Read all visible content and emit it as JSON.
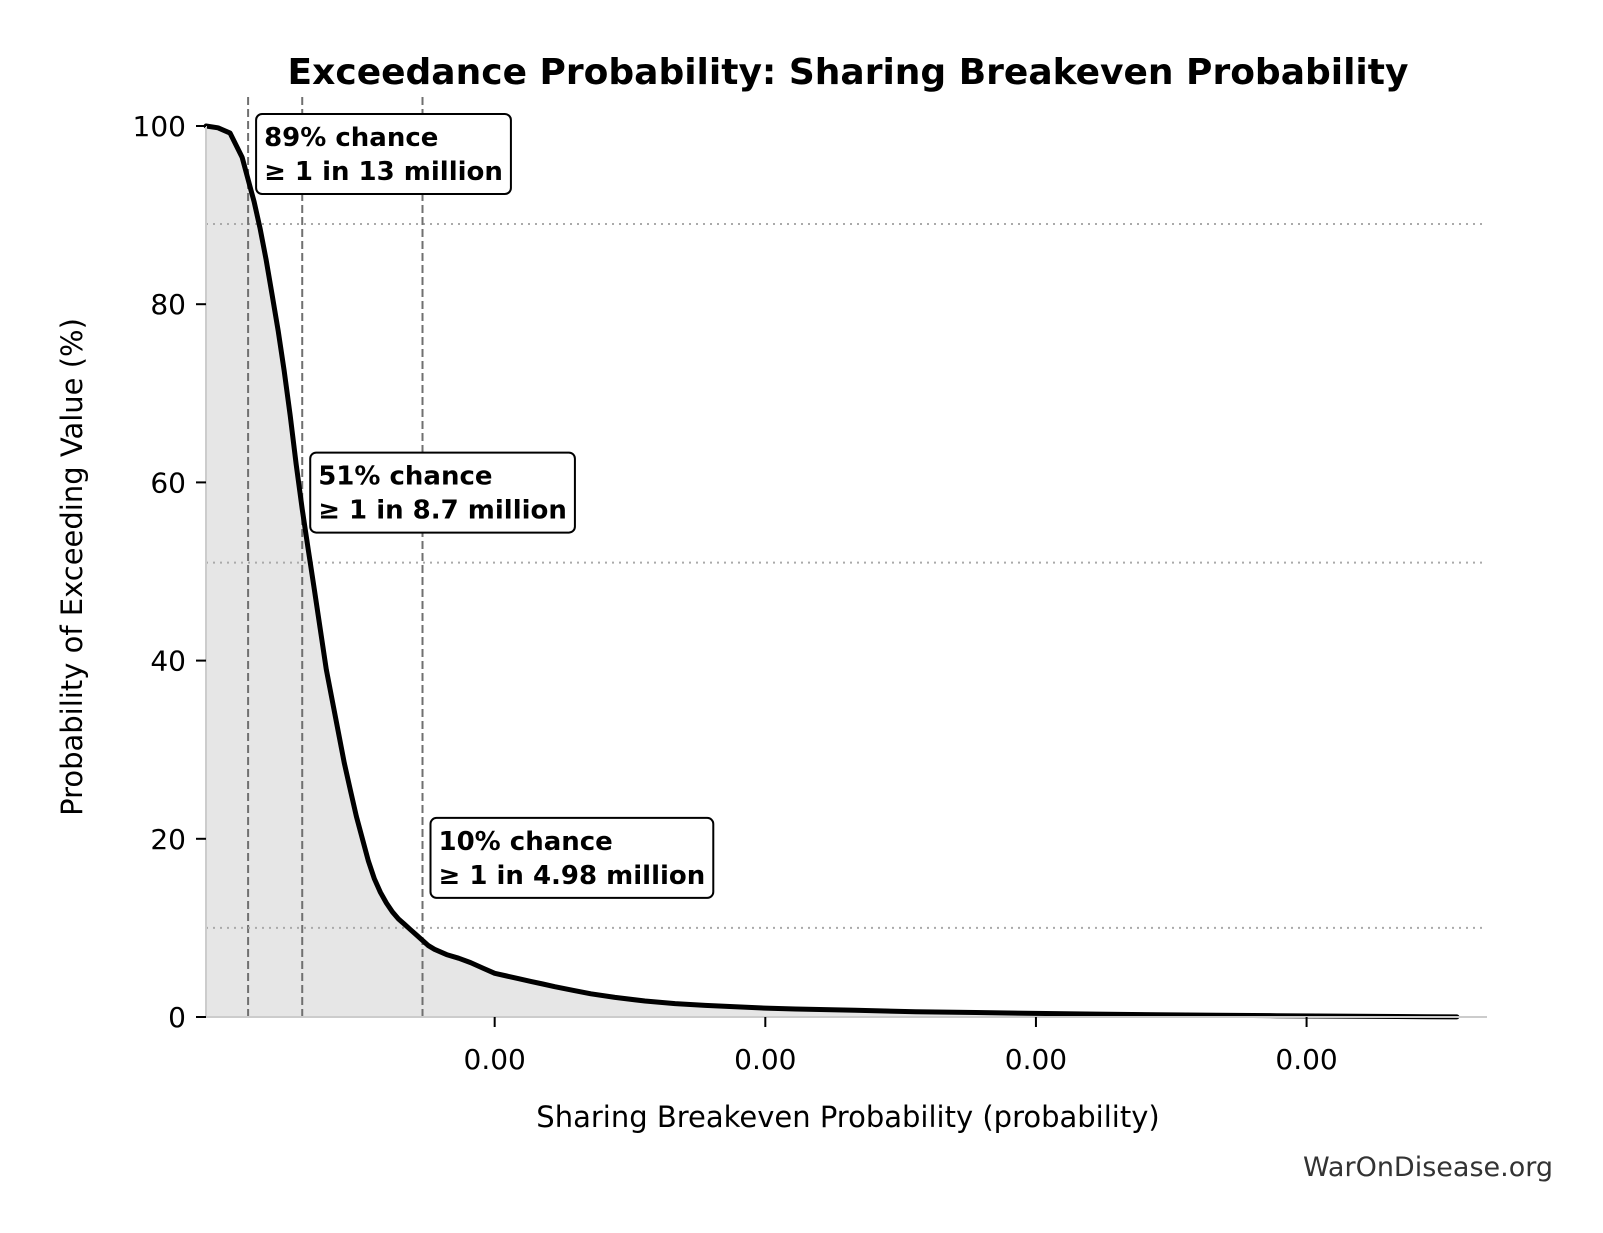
{
  "chart_data": {
    "type": "area",
    "title": "Exceedance Probability: Sharing Breakeven Probability",
    "xlabel": "Sharing Breakeven Probability (probability)",
    "ylabel": "Probability of Exceeding Value (%)",
    "xlim": [
      5.2e-08,
      2.65e-07
    ],
    "ylim": [
      0,
      100
    ],
    "yticks": [
      0,
      20,
      40,
      60,
      80,
      100
    ],
    "xticks": [
      {
        "value": 1e-07,
        "label": "0.00"
      },
      {
        "value": 1.45e-07,
        "label": "0.00"
      },
      {
        "value": 1.9e-07,
        "label": "0.00"
      },
      {
        "value": 2.35e-07,
        "label": "0.00"
      }
    ],
    "grid": false,
    "series": [
      {
        "x": [
          5.2e-08,
          5.4e-08,
          5.6e-08,
          5.8e-08,
          5.9e-08,
          6e-08,
          6.1e-08,
          6.2e-08,
          6.3e-08,
          6.4e-08,
          6.5e-08,
          6.6e-08,
          6.7e-08,
          6.8e-08,
          6.9e-08,
          7e-08,
          7.1e-08,
          7.2e-08,
          7.3e-08,
          7.4e-08,
          7.5e-08,
          7.6e-08,
          7.7e-08,
          7.8e-08,
          7.9e-08,
          8e-08,
          8.1e-08,
          8.2e-08,
          8.3e-08,
          8.4e-08,
          8.5e-08,
          8.6e-08,
          8.7e-08,
          8.8e-08,
          8.9e-08,
          9e-08,
          9.2e-08,
          9.4e-08,
          9.6e-08,
          9.8e-08,
          1e-07,
          1.02e-07,
          1.04e-07,
          1.06e-07,
          1.08e-07,
          1.1e-07,
          1.13e-07,
          1.16e-07,
          1.2e-07,
          1.25e-07,
          1.3e-07,
          1.35e-07,
          1.4e-07,
          1.45e-07,
          1.5e-07,
          1.6e-07,
          1.7e-07,
          1.8e-07,
          1.9e-07,
          2e-07,
          2.1e-07,
          2.2e-07,
          2.3e-07,
          2.4e-07,
          2.5e-07,
          2.55e-07,
          2.6e-07
        ],
        "y": [
          100,
          99.8,
          99.2,
          96.5,
          94,
          91.5,
          88.5,
          85,
          81,
          77,
          72.5,
          67.5,
          62,
          57,
          52.5,
          48,
          43.5,
          39,
          35.5,
          32,
          28.5,
          25.5,
          22.5,
          20,
          17.5,
          15.5,
          14,
          12.8,
          11.8,
          11,
          10.4,
          9.8,
          9.2,
          8.6,
          8,
          7.6,
          7,
          6.6,
          6.1,
          5.5,
          4.9,
          4.6,
          4.3,
          4,
          3.7,
          3.4,
          3,
          2.6,
          2.2,
          1.8,
          1.5,
          1.3,
          1.15,
          1.0,
          0.9,
          0.75,
          0.6,
          0.5,
          0.4,
          0.32,
          0.25,
          0.2,
          0.15,
          0.1,
          0.06,
          0.03,
          0.01
        ]
      }
    ],
    "annotations": [
      {
        "x": 5.9e-08,
        "y": 89,
        "line1": "89% chance",
        "line2": "≥ 1 in 13 million"
      },
      {
        "x": 6.8e-08,
        "y": 51,
        "line1": "51% chance",
        "line2": "≥ 1 in 8.7 million"
      },
      {
        "x": 8.8e-08,
        "y": 10,
        "line1": "10% chance",
        "line2": "≥ 1 in 4.98 million"
      }
    ]
  },
  "credit": "WarOnDisease.org"
}
